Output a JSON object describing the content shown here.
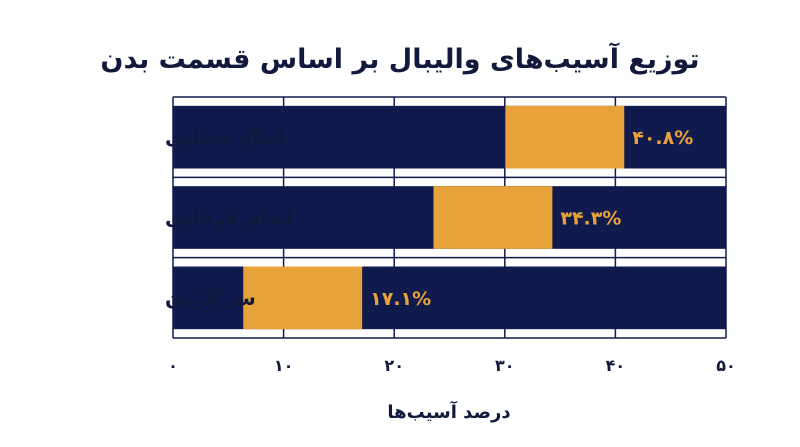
{
  "chart_data": {
    "type": "bar",
    "orientation": "horizontal",
    "title": "توزیع آسیب‌های والیبال بر اساس قسمت بدن",
    "xlabel": "درصد آسیب‌ها",
    "ylabel": "",
    "xlim": [
      0,
      50
    ],
    "x_ticks": [
      0,
      10,
      20,
      30,
      40,
      50
    ],
    "x_tick_labels": [
      "۰",
      "۱۰",
      "۲۰",
      "۳۰",
      "۴۰",
      "۵۰"
    ],
    "grid": true,
    "categories": [
      "اندام تحتانی",
      "اندام فوقانی",
      "سر/گردن"
    ],
    "values": [
      40.8,
      34.3,
      17.1
    ],
    "data_labels": [
      "۴۰.۸%",
      "۳۴.۳%",
      "۱۷.۱%"
    ],
    "colors": {
      "bar": "#111a4d",
      "highlight": "#e8a23a",
      "label": "#e8a23a",
      "text": "#111a3d",
      "grid": "#111a4d"
    }
  }
}
